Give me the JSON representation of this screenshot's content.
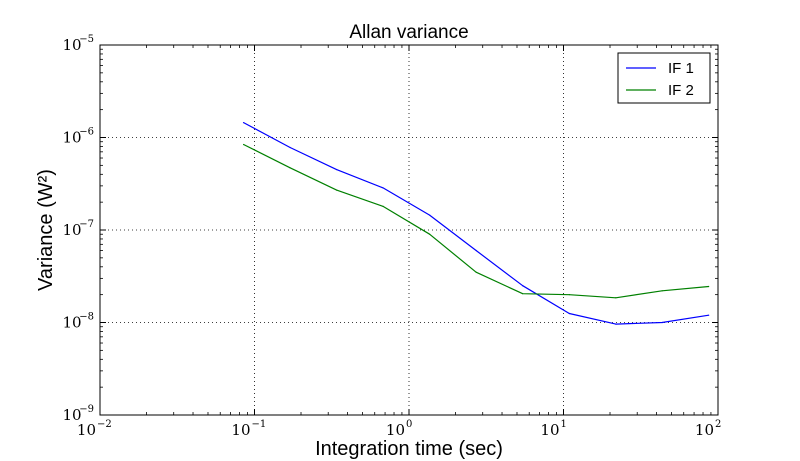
{
  "chart_data": {
    "type": "line",
    "title": "Allan variance",
    "xlabel": "Integration time (sec)",
    "ylabel": "Variance (W²)",
    "xscale": "log",
    "yscale": "log",
    "xlim": [
      0.01,
      100
    ],
    "ylim": [
      1e-09,
      1e-05
    ],
    "x_ticks": [
      {
        "value": 0.01,
        "base": "10",
        "exp": "−2"
      },
      {
        "value": 0.1,
        "base": "10",
        "exp": "−1"
      },
      {
        "value": 1,
        "base": "10",
        "exp": "0"
      },
      {
        "value": 10,
        "base": "10",
        "exp": "1"
      },
      {
        "value": 100,
        "base": "10",
        "exp": "2"
      }
    ],
    "y_ticks": [
      {
        "value": 1e-09,
        "base": "10",
        "exp": "−9"
      },
      {
        "value": 1e-08,
        "base": "10",
        "exp": "−8"
      },
      {
        "value": 1e-07,
        "base": "10",
        "exp": "−7"
      },
      {
        "value": 1e-06,
        "base": "10",
        "exp": "−6"
      },
      {
        "value": 1e-05,
        "base": "10",
        "exp": "−5"
      }
    ],
    "grid": true,
    "grid_style": "dotted",
    "legend_position": "top-right",
    "series": [
      {
        "name": "IF 1",
        "color": "#0000ff",
        "x": [
          0.085,
          0.17,
          0.34,
          0.68,
          1.36,
          2.72,
          5.44,
          10.9,
          21.8,
          43.5,
          87
        ],
        "y": [
          1.45e-06,
          7.8e-07,
          4.5e-07,
          2.85e-07,
          1.45e-07,
          6e-08,
          2.5e-08,
          1.25e-08,
          9.6e-09,
          1e-08,
          1.2e-08
        ]
      },
      {
        "name": "IF 2",
        "color": "#008000",
        "x": [
          0.085,
          0.17,
          0.34,
          0.68,
          1.36,
          2.72,
          5.44,
          10.9,
          21.8,
          43.5,
          87
        ],
        "y": [
          8.4e-07,
          4.7e-07,
          2.7e-07,
          1.8e-07,
          9e-08,
          3.5e-08,
          2.05e-08,
          2e-08,
          1.85e-08,
          2.2e-08,
          2.45e-08
        ]
      }
    ]
  }
}
